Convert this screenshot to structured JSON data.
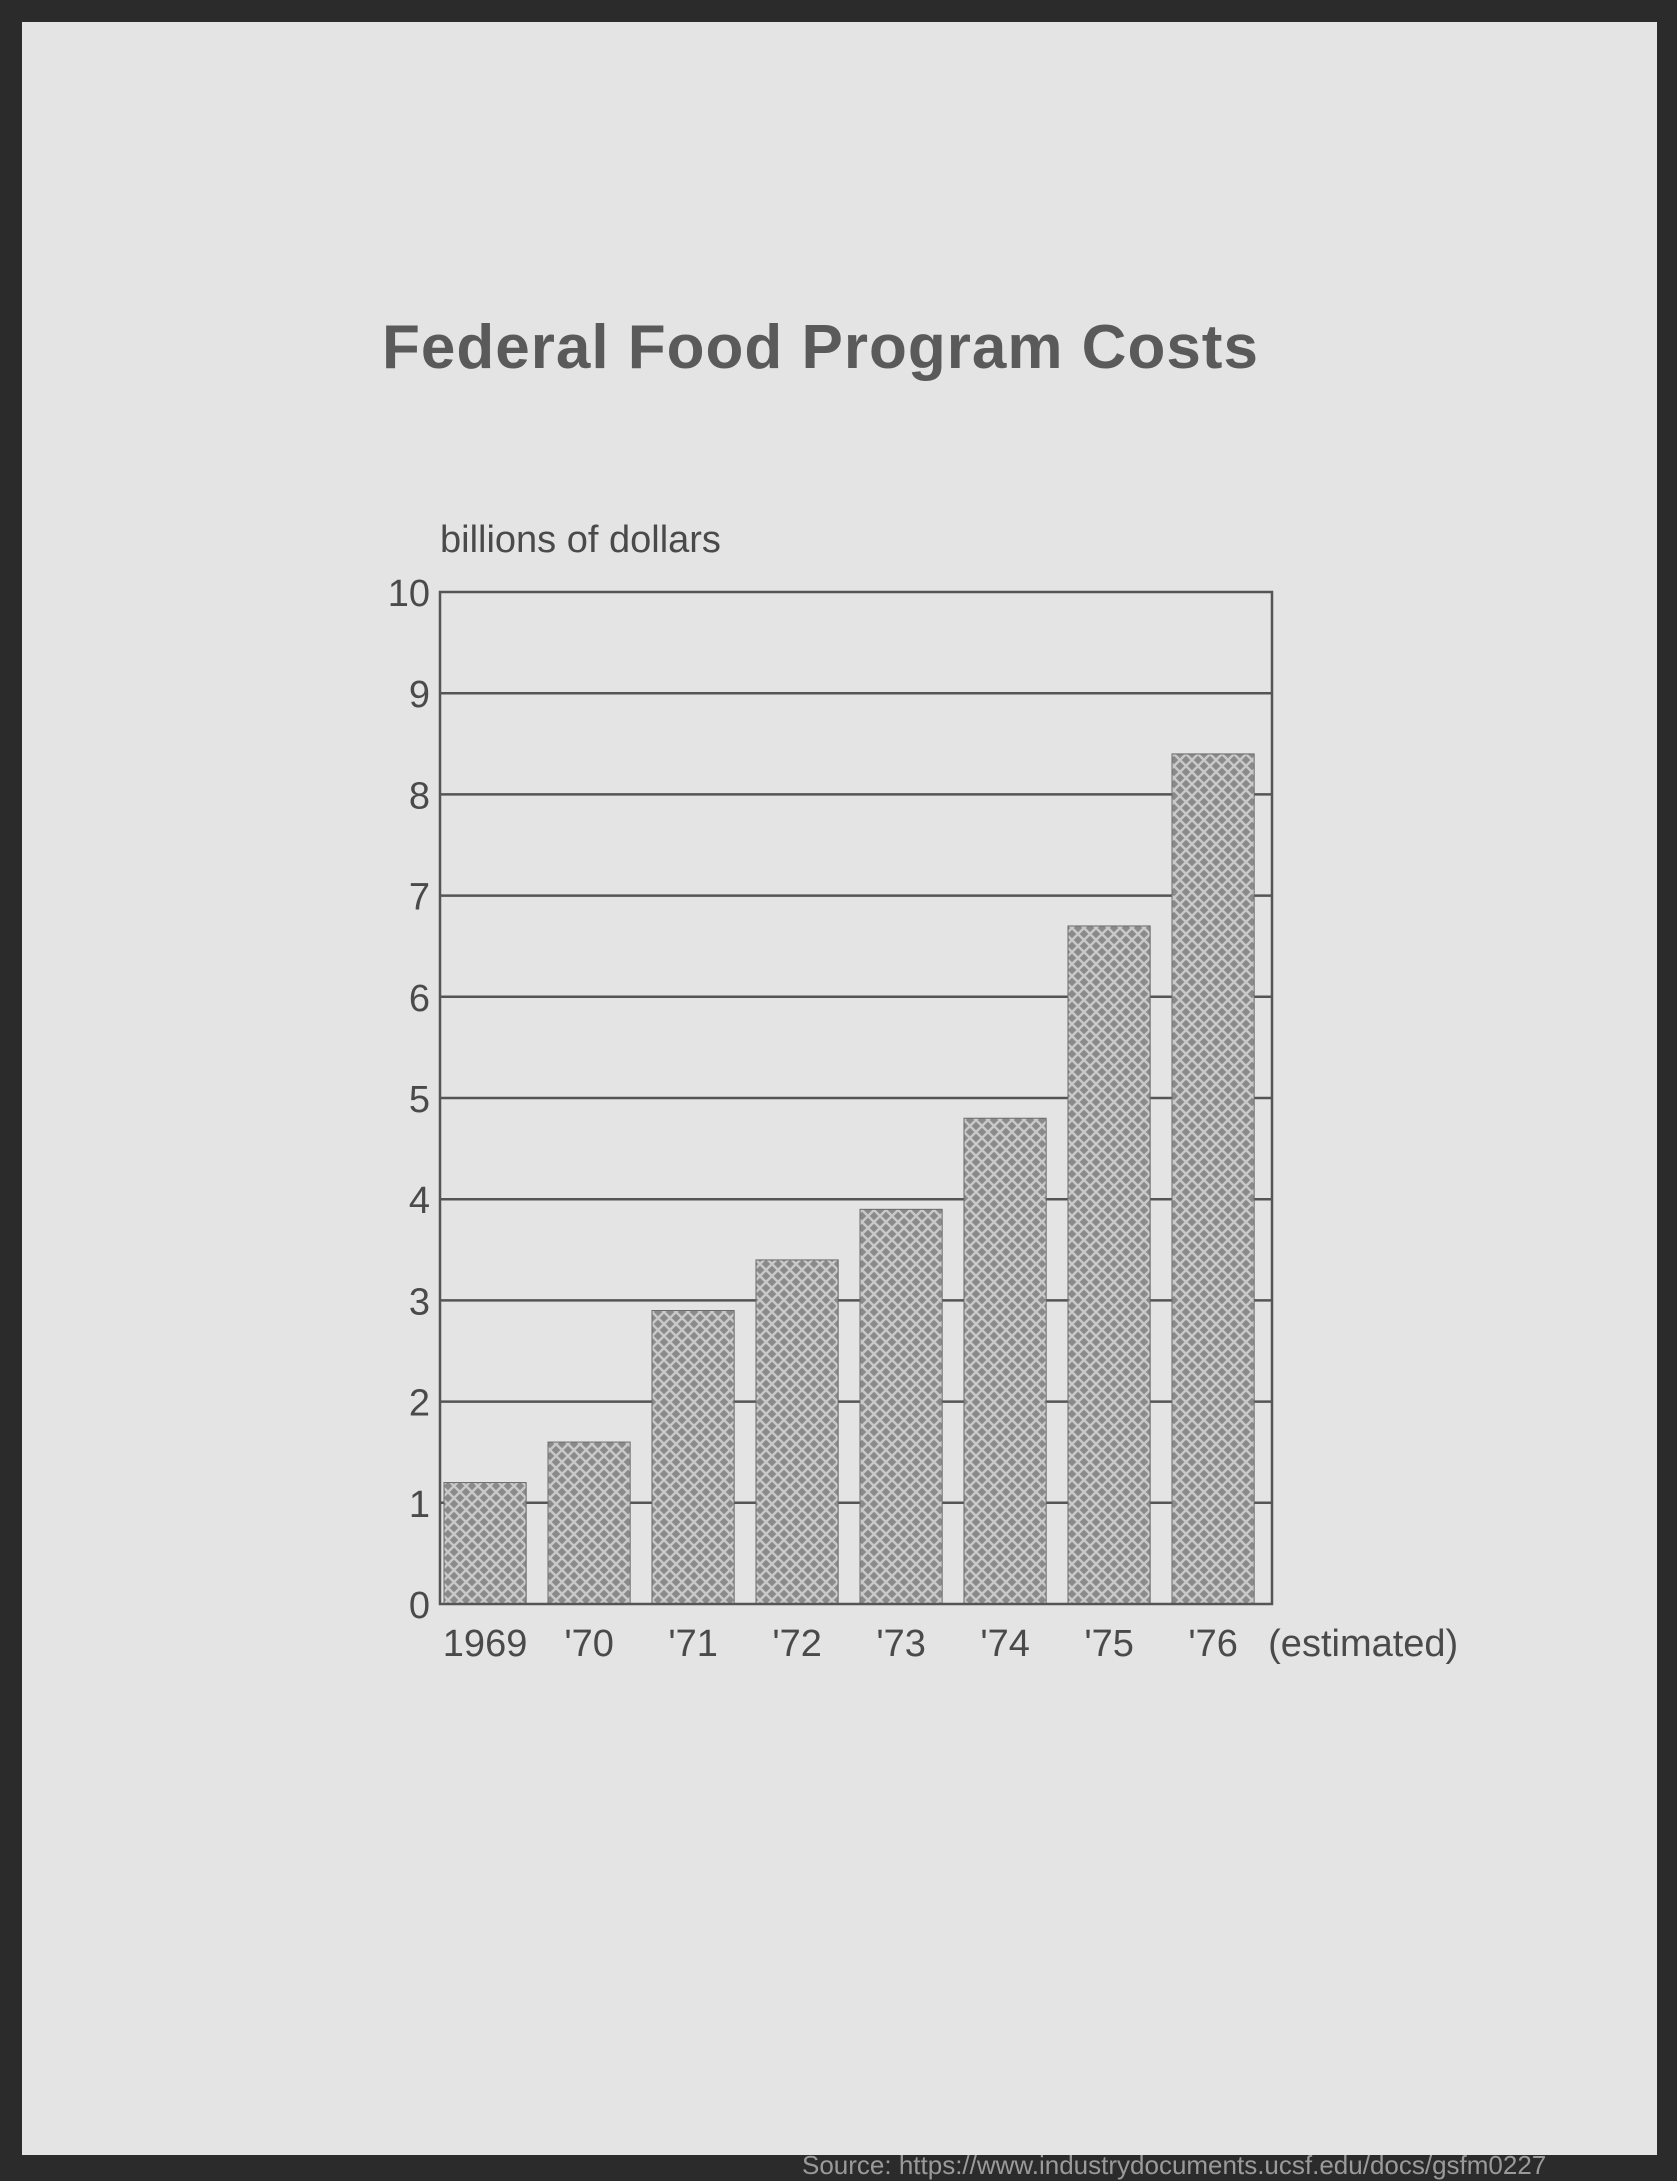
{
  "chart_data": {
    "type": "bar",
    "title": "Federal Food Program Costs",
    "ylabel": "billions of dollars",
    "xlabel": "",
    "categories": [
      "1969",
      "'70",
      "'71",
      "'72",
      "'73",
      "'74",
      "'75",
      "'76"
    ],
    "values": [
      1.2,
      1.6,
      2.9,
      3.4,
      3.9,
      4.8,
      6.7,
      8.4
    ],
    "x_suffix": "(estimated)",
    "ylim": [
      0,
      10
    ],
    "yticks": [
      "0",
      "1",
      "2",
      "3",
      "4",
      "5",
      "6",
      "7",
      "8",
      "9",
      "10"
    ],
    "grid": true,
    "bar_color": "#8c8c8c"
  },
  "source": "Source: https://www.industrydocuments.ucsf.edu/docs/gsfm0227"
}
